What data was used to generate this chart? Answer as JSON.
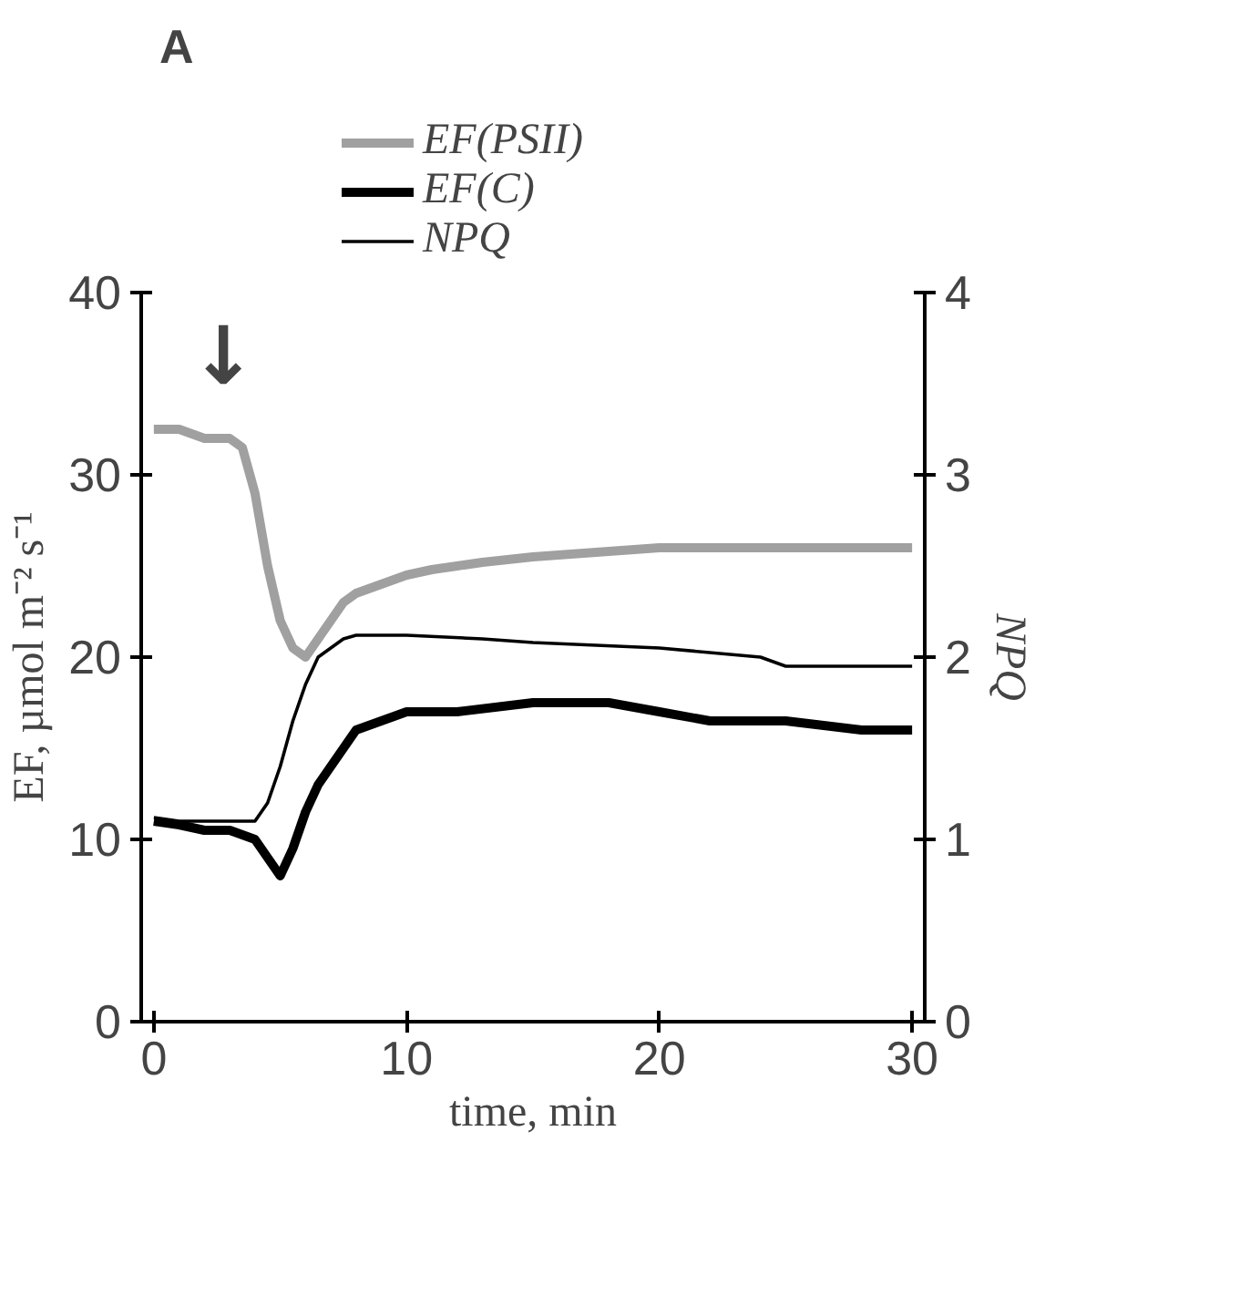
{
  "chart_data": {
    "type": "line",
    "xlabel": "time, min",
    "ylabel": "EF, µmol m⁻² s⁻¹",
    "y2label": "NPQ",
    "annotations": [
      "A",
      "↓"
    ],
    "xlim": [
      -0.5,
      30.5
    ],
    "xticks": [
      0,
      10,
      20,
      30
    ],
    "ylim": [
      0,
      40
    ],
    "yticks": [
      0,
      10,
      20,
      30,
      40
    ],
    "y2lim": [
      0,
      4
    ],
    "y2ticks": [
      0,
      1,
      2,
      3,
      4
    ],
    "grid": false,
    "legend": "top left",
    "marker": "none",
    "line_style": "solid",
    "series": [
      {
        "name": "EF(PSII)",
        "color": "#a0a0a0",
        "x": [
          0,
          1,
          2,
          3,
          3.5,
          4,
          4.5,
          5,
          5.5,
          6,
          6.5,
          7,
          7.5,
          8,
          9,
          10,
          11,
          12,
          13,
          15,
          17,
          20,
          25,
          30
        ],
        "values": [
          32.5,
          32.5,
          32,
          32,
          31.5,
          29,
          25,
          22,
          20.5,
          20,
          21,
          22,
          23,
          23.5,
          24,
          24.5,
          24.8,
          25,
          25.2,
          25.5,
          25.7,
          26,
          26,
          26
        ]
      },
      {
        "name": "EF(C)",
        "color": "#000000",
        "x": [
          0,
          1,
          2,
          3,
          4,
          4.5,
          5,
          5.5,
          6,
          6.5,
          7,
          7.5,
          8,
          9,
          10,
          12,
          15,
          18,
          20,
          22,
          25,
          28,
          30
        ],
        "values": [
          11,
          10.8,
          10.5,
          10.5,
          10,
          9,
          8,
          9.5,
          11.5,
          13,
          14,
          15,
          16,
          16.5,
          17,
          17,
          17.5,
          17.5,
          17,
          16.5,
          16.5,
          16,
          16
        ]
      },
      {
        "name": "NPQ",
        "color": "#000000",
        "axis": "y2",
        "x": [
          0,
          1,
          2,
          3,
          4,
          4.5,
          5,
          5.5,
          6,
          6.5,
          7,
          7.5,
          8,
          10,
          13,
          15,
          20,
          24,
          25,
          30
        ],
        "values": [
          1.12,
          1.1,
          1.1,
          1.1,
          1.1,
          1.2,
          1.4,
          1.65,
          1.85,
          2.0,
          2.05,
          2.1,
          2.12,
          2.12,
          2.1,
          2.08,
          2.05,
          2.0,
          1.95,
          1.95
        ]
      }
    ]
  }
}
